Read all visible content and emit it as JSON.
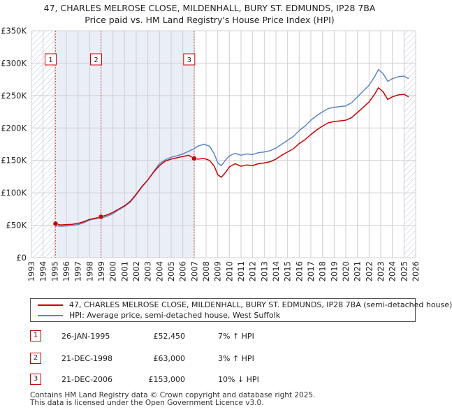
{
  "title_line1": "47, CHARLES MELROSE CLOSE, MILDENHALL, BURY ST. EDMUNDS, IP28 7BA",
  "title_line2": "Price paid vs. HM Land Registry's House Price Index (HPI)",
  "colors": {
    "property": "#cc0000",
    "hpi": "#5b86c7",
    "shade": "#e9eef7",
    "grid": "#d0d0d0",
    "vline": "#e06060"
  },
  "chart_data": {
    "type": "line",
    "title": "47, CHARLES MELROSE CLOSE, MILDENHALL, BURY ST. EDMUNDS, IP28 7BA",
    "subtitle": "Price paid vs. HM Land Registry's House Price Index (HPI)",
    "xlim": [
      1993,
      2026
    ],
    "ylim": [
      0,
      350000
    ],
    "y_ticks": [
      {
        "value": 0,
        "label": "£0"
      },
      {
        "value": 50000,
        "label": "£50K"
      },
      {
        "value": 100000,
        "label": "£100K"
      },
      {
        "value": 150000,
        "label": "£150K"
      },
      {
        "value": 200000,
        "label": "£200K"
      },
      {
        "value": 250000,
        "label": "£250K"
      },
      {
        "value": 300000,
        "label": "£300K"
      },
      {
        "value": 350000,
        "label": "£350K"
      }
    ],
    "x_ticks": [
      "1993",
      "1994",
      "1995",
      "1996",
      "1997",
      "1998",
      "1999",
      "2000",
      "2001",
      "2002",
      "2003",
      "2004",
      "2005",
      "2006",
      "2007",
      "2008",
      "2009",
      "2010",
      "2011",
      "2012",
      "2013",
      "2014",
      "2015",
      "2016",
      "2017",
      "2018",
      "2019",
      "2020",
      "2021",
      "2022",
      "2023",
      "2024",
      "2025",
      "2026"
    ],
    "grid": true,
    "shaded_ranges": [
      [
        1993,
        1995.07
      ],
      [
        2025.0,
        2026
      ]
    ],
    "hatched_ranges": [
      [
        1993,
        1995.07
      ],
      [
        2025.0,
        2026
      ]
    ],
    "series": [
      {
        "name": "47, CHARLES MELROSE CLOSE, MILDENHALL, BURY ST. EDMUNDS, IP28 7BA (semi-detached house)",
        "color": "#cc0000",
        "points": [
          [
            1995.07,
            52450
          ],
          [
            1995.5,
            50500
          ],
          [
            1996,
            51000
          ],
          [
            1996.5,
            51500
          ],
          [
            1997,
            53000
          ],
          [
            1997.5,
            55500
          ],
          [
            1998,
            59000
          ],
          [
            1998.5,
            61000
          ],
          [
            1998.97,
            63000
          ],
          [
            1999.5,
            66000
          ],
          [
            2000,
            70000
          ],
          [
            2000.5,
            75000
          ],
          [
            2001,
            80000
          ],
          [
            2001.5,
            87000
          ],
          [
            2002,
            98000
          ],
          [
            2002.5,
            110000
          ],
          [
            2003,
            120000
          ],
          [
            2003.5,
            132000
          ],
          [
            2004,
            142000
          ],
          [
            2004.5,
            149000
          ],
          [
            2005,
            152000
          ],
          [
            2005.5,
            154000
          ],
          [
            2006,
            156000
          ],
          [
            2006.5,
            158000
          ],
          [
            2006.97,
            153000
          ],
          [
            2007.3,
            152000
          ],
          [
            2007.8,
            153000
          ],
          [
            2008.3,
            150000
          ],
          [
            2008.7,
            141000
          ],
          [
            2009.0,
            128000
          ],
          [
            2009.3,
            124000
          ],
          [
            2009.7,
            132000
          ],
          [
            2010,
            140000
          ],
          [
            2010.5,
            145000
          ],
          [
            2011,
            141000
          ],
          [
            2011.5,
            143000
          ],
          [
            2012,
            142000
          ],
          [
            2012.5,
            145000
          ],
          [
            2013,
            146000
          ],
          [
            2013.5,
            148000
          ],
          [
            2014,
            152000
          ],
          [
            2014.5,
            158000
          ],
          [
            2015,
            163000
          ],
          [
            2015.5,
            168000
          ],
          [
            2016,
            176000
          ],
          [
            2016.5,
            182000
          ],
          [
            2017,
            190000
          ],
          [
            2017.5,
            197000
          ],
          [
            2018,
            203000
          ],
          [
            2018.5,
            208000
          ],
          [
            2019,
            210000
          ],
          [
            2019.5,
            211000
          ],
          [
            2020,
            212000
          ],
          [
            2020.5,
            216000
          ],
          [
            2021,
            224000
          ],
          [
            2021.5,
            232000
          ],
          [
            2022,
            240000
          ],
          [
            2022.5,
            253000
          ],
          [
            2022.8,
            262000
          ],
          [
            2023.2,
            256000
          ],
          [
            2023.6,
            244000
          ],
          [
            2024,
            248000
          ],
          [
            2024.5,
            251000
          ],
          [
            2025,
            252000
          ],
          [
            2025.4,
            248000
          ]
        ]
      },
      {
        "name": "HPI: Average price, semi-detached house, West Suffolk",
        "color": "#5b86c7",
        "points": [
          [
            1995.07,
            49000
          ],
          [
            1995.5,
            48500
          ],
          [
            1996,
            49000
          ],
          [
            1996.5,
            49500
          ],
          [
            1997,
            51000
          ],
          [
            1997.5,
            54000
          ],
          [
            1998,
            58000
          ],
          [
            1998.5,
            60000
          ],
          [
            1998.97,
            61000
          ],
          [
            1999.5,
            64000
          ],
          [
            2000,
            68000
          ],
          [
            2000.5,
            74000
          ],
          [
            2001,
            79000
          ],
          [
            2001.5,
            86000
          ],
          [
            2002,
            97000
          ],
          [
            2002.5,
            109000
          ],
          [
            2003,
            120000
          ],
          [
            2003.5,
            133000
          ],
          [
            2004,
            145000
          ],
          [
            2004.5,
            151000
          ],
          [
            2005,
            155000
          ],
          [
            2005.5,
            157000
          ],
          [
            2006,
            160000
          ],
          [
            2006.5,
            164000
          ],
          [
            2006.97,
            168000
          ],
          [
            2007.3,
            172000
          ],
          [
            2007.8,
            175000
          ],
          [
            2008.3,
            172000
          ],
          [
            2008.7,
            160000
          ],
          [
            2009.0,
            146000
          ],
          [
            2009.3,
            142000
          ],
          [
            2009.7,
            151000
          ],
          [
            2010,
            157000
          ],
          [
            2010.5,
            161000
          ],
          [
            2011,
            158000
          ],
          [
            2011.5,
            160000
          ],
          [
            2012,
            159000
          ],
          [
            2012.5,
            162000
          ],
          [
            2013,
            163000
          ],
          [
            2013.5,
            165000
          ],
          [
            2014,
            169000
          ],
          [
            2014.5,
            175000
          ],
          [
            2015,
            181000
          ],
          [
            2015.5,
            187000
          ],
          [
            2016,
            196000
          ],
          [
            2016.5,
            203000
          ],
          [
            2017,
            212000
          ],
          [
            2017.5,
            219000
          ],
          [
            2018,
            225000
          ],
          [
            2018.5,
            230000
          ],
          [
            2019,
            232000
          ],
          [
            2019.5,
            233000
          ],
          [
            2020,
            234000
          ],
          [
            2020.5,
            239000
          ],
          [
            2021,
            248000
          ],
          [
            2021.5,
            257000
          ],
          [
            2022,
            266000
          ],
          [
            2022.5,
            280000
          ],
          [
            2022.8,
            290000
          ],
          [
            2023.2,
            284000
          ],
          [
            2023.6,
            272000
          ],
          [
            2024,
            276000
          ],
          [
            2024.5,
            279000
          ],
          [
            2025,
            280000
          ],
          [
            2025.4,
            276000
          ]
        ]
      }
    ],
    "sales": [
      {
        "num": "1",
        "x": 1995.07,
        "y": 52450
      },
      {
        "num": "2",
        "x": 1998.97,
        "y": 63000
      },
      {
        "num": "3",
        "x": 2006.97,
        "y": 153000
      }
    ],
    "legend_position": "below"
  },
  "legend": {
    "property_label": "47, CHARLES MELROSE CLOSE, MILDENHALL, BURY ST. EDMUNDS, IP28 7BA (semi-detached house)",
    "hpi_label": "HPI: Average price, semi-detached house, West Suffolk"
  },
  "transactions": [
    {
      "num": "1",
      "date": "26-JAN-1995",
      "price": "£52,450",
      "hpi": "7% ↑ HPI"
    },
    {
      "num": "2",
      "date": "21-DEC-1998",
      "price": "£63,000",
      "hpi": "3% ↑ HPI"
    },
    {
      "num": "3",
      "date": "21-DEC-2006",
      "price": "£153,000",
      "hpi": "10% ↓ HPI"
    }
  ],
  "footer": {
    "line1": "Contains HM Land Registry data © Crown copyright and database right 2025.",
    "line2": "This data is licensed under the Open Government Licence v3.0."
  }
}
